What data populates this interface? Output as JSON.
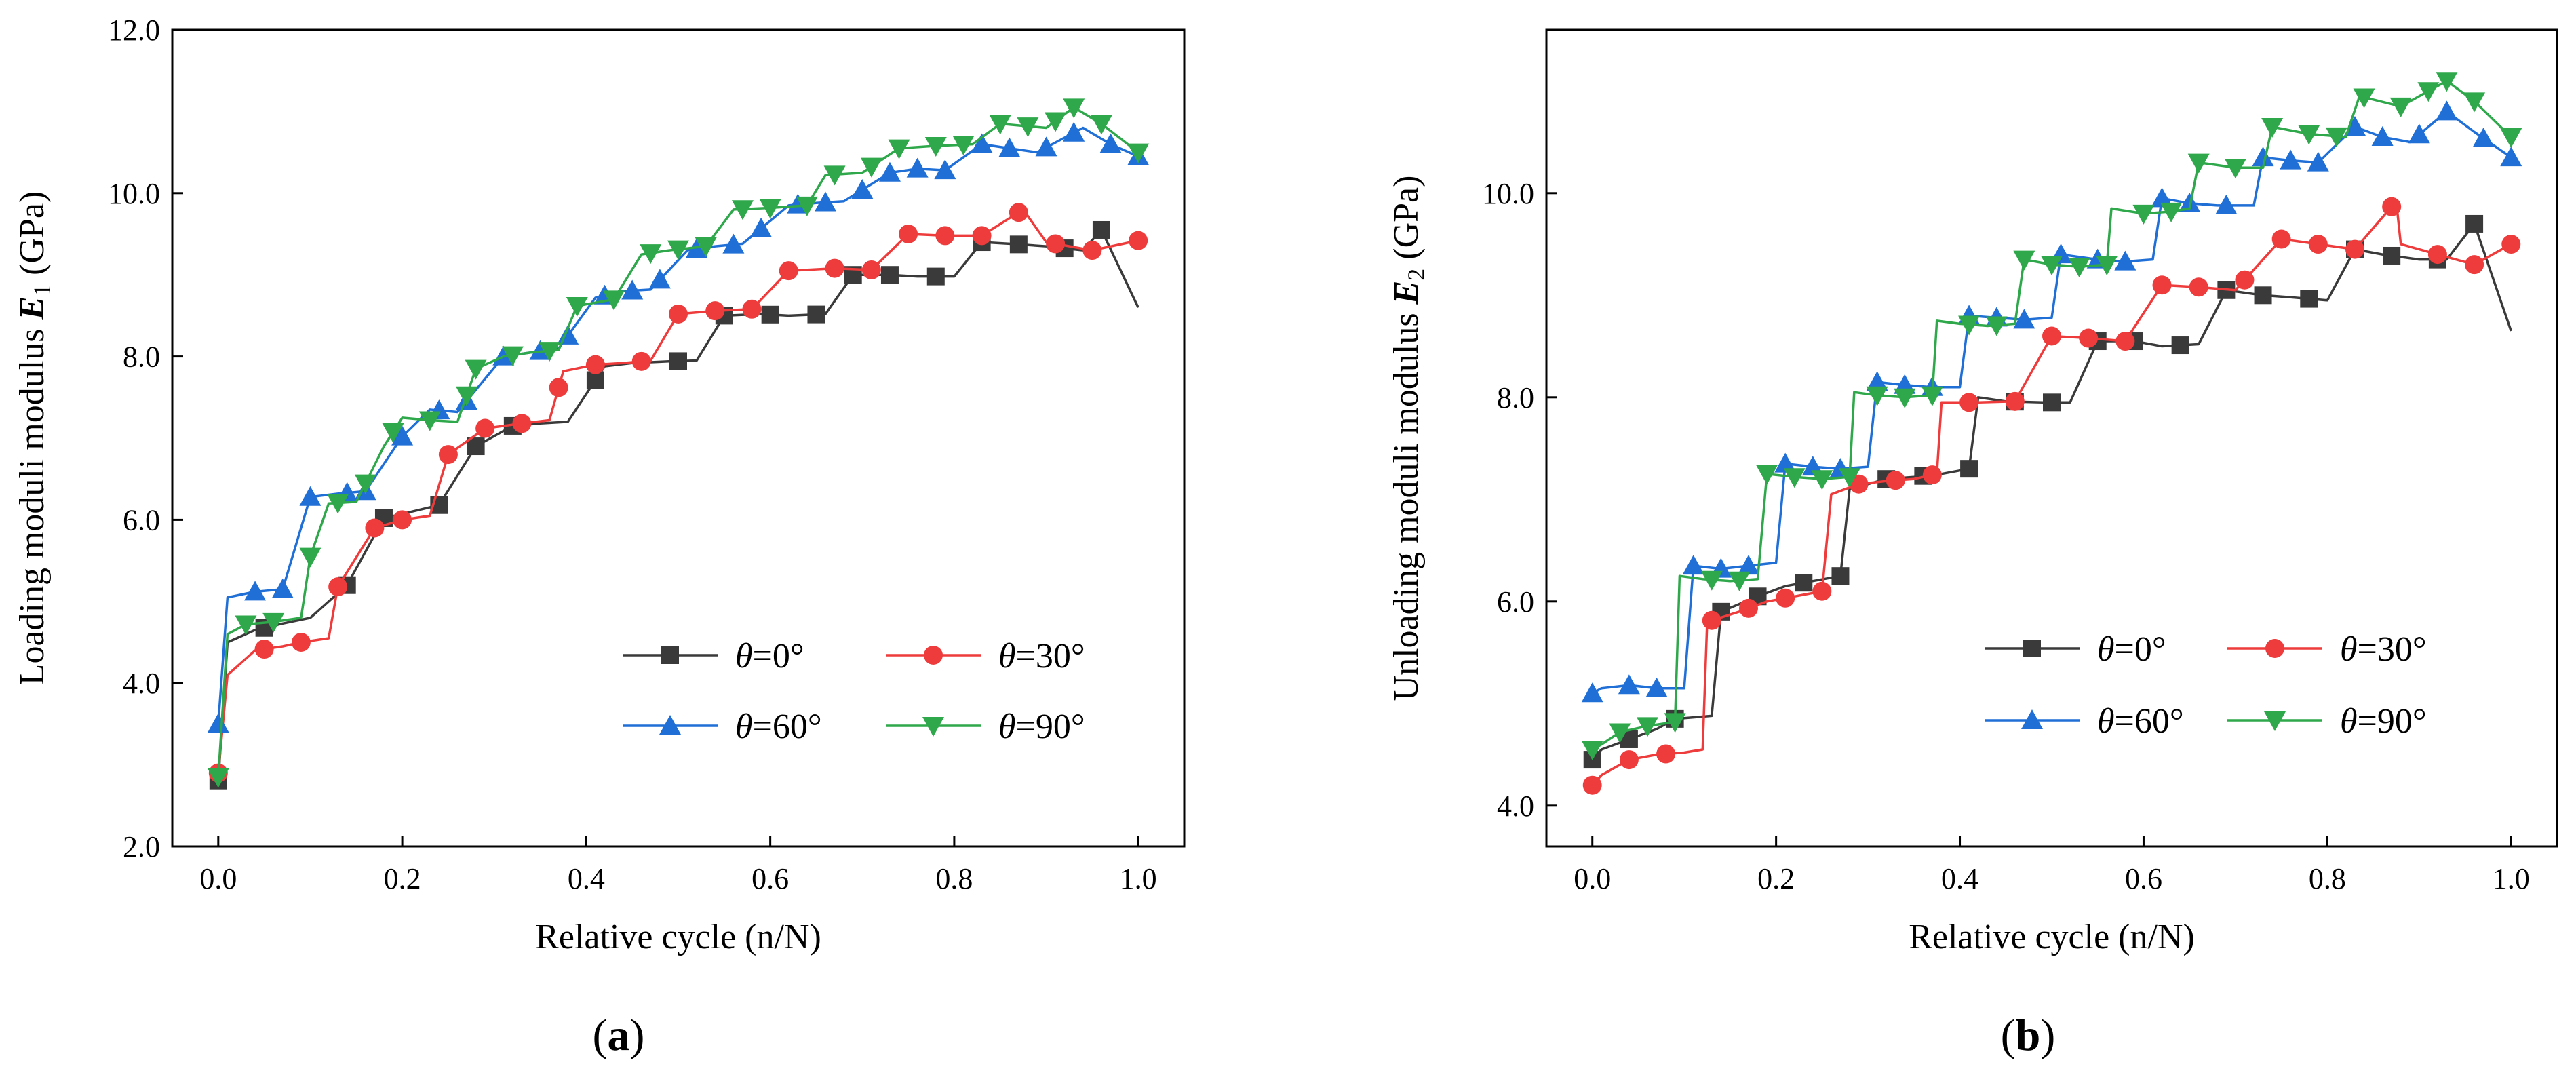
{
  "panel_labels": {
    "a": "a",
    "b": "b"
  },
  "chart_data": [
    {
      "type": "line",
      "panel": "a",
      "title": "",
      "xlabel": "Relative cycle (n/N)",
      "ylabel": {
        "main": "Loading moduli modulus",
        "symbol": "E",
        "subscript": "1",
        "unit": "(GPa)"
      },
      "xlim": [
        -0.05,
        1.05
      ],
      "ylim": [
        2.0,
        12.0
      ],
      "xticks": [
        0.0,
        0.2,
        0.4,
        0.6,
        0.8,
        1.0
      ],
      "xtick_labels": [
        "0.0",
        "0.2",
        "0.4",
        "0.6",
        "0.8",
        "1.0"
      ],
      "yticks": [
        2.0,
        4.0,
        6.0,
        8.0,
        10.0,
        12.0
      ],
      "ytick_labels": [
        "2.0",
        "4.0",
        "6.0",
        "8.0",
        "10.0",
        "12.0"
      ],
      "legend_position": "lower-right",
      "series": [
        {
          "name": "θ=0°",
          "symbol": "θ",
          "suffix": "=0°",
          "color": "#3a3a3a",
          "marker": "square",
          "x": [
            0.0,
            0.01,
            0.04,
            0.07,
            0.1,
            0.14,
            0.18,
            0.21,
            0.24,
            0.28,
            0.32,
            0.35,
            0.38,
            0.42,
            0.45,
            0.49,
            0.52,
            0.55,
            0.59,
            0.62,
            0.66,
            0.69,
            0.73,
            0.76,
            0.8,
            0.83,
            0.86,
            0.9,
            0.94,
            0.96,
            1.0
          ],
          "y": [
            2.8,
            4.5,
            4.65,
            4.73,
            4.8,
            5.2,
            6.02,
            6.1,
            6.18,
            6.9,
            7.15,
            7.18,
            7.2,
            7.88,
            7.92,
            7.94,
            7.95,
            8.5,
            8.52,
            8.5,
            8.52,
            9.0,
            9.0,
            8.98,
            8.98,
            9.4,
            9.38,
            9.35,
            9.3,
            9.55,
            8.6
          ],
          "markers_x": [
            0.0,
            0.05,
            0.14,
            0.18,
            0.24,
            0.28,
            0.32,
            0.41,
            0.5,
            0.55,
            0.6,
            0.65,
            0.69,
            0.73,
            0.78,
            0.83,
            0.87,
            0.92,
            0.96
          ]
        },
        {
          "name": "θ=30°",
          "symbol": "θ",
          "suffix": "=30°",
          "color": "#ee3b3b",
          "marker": "circle",
          "x": [
            0.0,
            0.01,
            0.04,
            0.07,
            0.09,
            0.12,
            0.13,
            0.17,
            0.2,
            0.23,
            0.25,
            0.29,
            0.33,
            0.36,
            0.375,
            0.41,
            0.44,
            0.47,
            0.5,
            0.54,
            0.58,
            0.62,
            0.67,
            0.71,
            0.75,
            0.79,
            0.83,
            0.875,
            0.9,
            0.95,
            1.0
          ],
          "y": [
            2.9,
            4.1,
            4.4,
            4.45,
            4.5,
            4.55,
            5.18,
            5.9,
            6.0,
            6.05,
            6.8,
            7.12,
            7.18,
            7.22,
            7.82,
            7.9,
            7.92,
            7.95,
            8.52,
            8.56,
            8.58,
            9.05,
            9.08,
            9.06,
            9.5,
            9.48,
            9.48,
            9.8,
            9.4,
            9.3,
            9.42
          ],
          "markers_x": [
            0.0,
            0.05,
            0.09,
            0.13,
            0.17,
            0.2,
            0.25,
            0.29,
            0.33,
            0.37,
            0.41,
            0.46,
            0.5,
            0.54,
            0.58,
            0.62,
            0.67,
            0.71,
            0.75,
            0.79,
            0.83,
            0.87,
            0.91,
            0.95,
            1.0
          ]
        },
        {
          "name": "θ=60°",
          "symbol": "θ",
          "suffix": "=60°",
          "color": "#1f6fd6",
          "marker": "triangle-up",
          "x": [
            0.0,
            0.01,
            0.04,
            0.07,
            0.1,
            0.13,
            0.16,
            0.2,
            0.23,
            0.26,
            0.31,
            0.34,
            0.37,
            0.41,
            0.44,
            0.47,
            0.51,
            0.54,
            0.57,
            0.62,
            0.65,
            0.68,
            0.73,
            0.76,
            0.79,
            0.83,
            0.86,
            0.89,
            0.94,
            0.97,
            1.0
          ],
          "y": [
            3.5,
            5.05,
            5.12,
            5.15,
            6.28,
            6.32,
            6.35,
            7.02,
            7.35,
            7.32,
            8.0,
            8.05,
            8.1,
            8.72,
            8.8,
            8.82,
            9.3,
            9.35,
            9.38,
            9.85,
            9.88,
            9.9,
            10.25,
            10.3,
            10.28,
            10.6,
            10.55,
            10.5,
            10.8,
            10.6,
            10.45
          ],
          "markers_x": [
            0.0,
            0.04,
            0.07,
            0.1,
            0.14,
            0.16,
            0.2,
            0.24,
            0.27,
            0.31,
            0.35,
            0.38,
            0.42,
            0.45,
            0.48,
            0.52,
            0.56,
            0.59,
            0.63,
            0.66,
            0.7,
            0.73,
            0.76,
            0.79,
            0.83,
            0.86,
            0.9,
            0.93,
            0.97,
            1.0
          ]
        },
        {
          "name": "θ=90°",
          "symbol": "θ",
          "suffix": "=90°",
          "color": "#2ea84a",
          "marker": "triangle-down",
          "x": [
            0.0,
            0.01,
            0.03,
            0.06,
            0.09,
            0.1,
            0.12,
            0.15,
            0.18,
            0.2,
            0.23,
            0.26,
            0.28,
            0.31,
            0.34,
            0.37,
            0.39,
            0.43,
            0.46,
            0.49,
            0.53,
            0.56,
            0.6,
            0.64,
            0.66,
            0.7,
            0.74,
            0.78,
            0.82,
            0.85,
            0.9,
            0.93,
            0.96,
            1.0
          ],
          "y": [
            2.85,
            4.6,
            4.72,
            4.75,
            4.8,
            5.55,
            6.2,
            6.22,
            6.9,
            7.25,
            7.22,
            7.2,
            7.85,
            8.0,
            8.05,
            8.08,
            8.62,
            8.7,
            9.25,
            9.3,
            9.35,
            9.8,
            9.82,
            9.85,
            10.22,
            10.25,
            10.55,
            10.58,
            10.6,
            10.85,
            10.8,
            11.05,
            10.85,
            10.5
          ],
          "markers_x": [
            0.0,
            0.03,
            0.06,
            0.1,
            0.13,
            0.16,
            0.19,
            0.23,
            0.27,
            0.28,
            0.32,
            0.36,
            0.39,
            0.43,
            0.47,
            0.5,
            0.53,
            0.57,
            0.6,
            0.64,
            0.67,
            0.71,
            0.74,
            0.78,
            0.81,
            0.85,
            0.88,
            0.91,
            0.93,
            0.96,
            1.0
          ]
        }
      ]
    },
    {
      "type": "line",
      "panel": "b",
      "title": "",
      "xlabel": "Relative cycle (n/N)",
      "ylabel": {
        "main": "Unloading moduli modulus",
        "symbol": "E",
        "subscript": "2",
        "unit": "(GPa)"
      },
      "xlim": [
        -0.05,
        1.05
      ],
      "ylim": [
        3.6,
        11.6
      ],
      "xticks": [
        0.0,
        0.2,
        0.4,
        0.6,
        0.8,
        1.0
      ],
      "xtick_labels": [
        "0.0",
        "0.2",
        "0.4",
        "0.6",
        "0.8",
        "1.0"
      ],
      "yticks": [
        4.0,
        6.0,
        8.0,
        10.0
      ],
      "ytick_labels": [
        "4.0",
        "6.0",
        "8.0",
        "10.0"
      ],
      "legend_position": "lower-right",
      "series": [
        {
          "name": "θ=0°",
          "symbol": "θ",
          "suffix": "=0°",
          "color": "#3a3a3a",
          "marker": "square",
          "x": [
            0.0,
            0.01,
            0.04,
            0.07,
            0.09,
            0.13,
            0.14,
            0.18,
            0.21,
            0.24,
            0.27,
            0.28,
            0.32,
            0.35,
            0.38,
            0.41,
            0.42,
            0.45,
            0.49,
            0.52,
            0.55,
            0.59,
            0.62,
            0.66,
            0.69,
            0.73,
            0.76,
            0.8,
            0.83,
            0.86,
            0.9,
            0.93,
            0.96,
            1.0
          ],
          "y": [
            4.45,
            4.55,
            4.65,
            4.75,
            4.85,
            4.88,
            5.9,
            6.05,
            6.15,
            6.2,
            6.25,
            7.1,
            7.2,
            7.22,
            7.25,
            7.3,
            8.0,
            7.96,
            7.95,
            7.95,
            8.55,
            8.55,
            8.5,
            8.52,
            9.05,
            9.0,
            8.98,
            8.95,
            9.45,
            9.4,
            9.35,
            9.35,
            9.7,
            8.65
          ],
          "markers_x": [
            0.0,
            0.04,
            0.09,
            0.14,
            0.18,
            0.23,
            0.27,
            0.32,
            0.36,
            0.41,
            0.46,
            0.5,
            0.55,
            0.59,
            0.64,
            0.69,
            0.73,
            0.78,
            0.83,
            0.87,
            0.92,
            0.96
          ]
        },
        {
          "name": "θ=30°",
          "symbol": "θ",
          "suffix": "=30°",
          "color": "#ee3b3b",
          "marker": "circle",
          "x": [
            0.0,
            0.01,
            0.04,
            0.07,
            0.1,
            0.12,
            0.125,
            0.16,
            0.19,
            0.22,
            0.25,
            0.26,
            0.29,
            0.32,
            0.35,
            0.375,
            0.38,
            0.42,
            0.46,
            0.5,
            0.54,
            0.58,
            0.62,
            0.66,
            0.7,
            0.75,
            0.79,
            0.83,
            0.875,
            0.88,
            0.92,
            0.96,
            1.0
          ],
          "y": [
            4.2,
            4.3,
            4.45,
            4.5,
            4.52,
            4.55,
            5.8,
            5.9,
            6.0,
            6.05,
            6.1,
            7.05,
            7.15,
            7.18,
            7.2,
            7.25,
            7.95,
            7.95,
            7.96,
            8.6,
            8.58,
            8.55,
            9.1,
            9.08,
            9.05,
            9.55,
            9.5,
            9.45,
            9.92,
            9.5,
            9.4,
            9.3,
            9.5
          ],
          "markers_x": [
            0.0,
            0.04,
            0.08,
            0.13,
            0.17,
            0.21,
            0.25,
            0.29,
            0.33,
            0.37,
            0.41,
            0.46,
            0.5,
            0.54,
            0.58,
            0.62,
            0.66,
            0.71,
            0.75,
            0.79,
            0.83,
            0.87,
            0.92,
            0.96,
            1.0
          ]
        },
        {
          "name": "θ=60°",
          "symbol": "θ",
          "suffix": "=60°",
          "color": "#1f6fd6",
          "marker": "triangle-up",
          "x": [
            0.0,
            0.01,
            0.04,
            0.07,
            0.1,
            0.11,
            0.14,
            0.17,
            0.2,
            0.21,
            0.24,
            0.27,
            0.3,
            0.31,
            0.34,
            0.37,
            0.4,
            0.41,
            0.44,
            0.47,
            0.5,
            0.51,
            0.55,
            0.58,
            0.61,
            0.62,
            0.65,
            0.68,
            0.72,
            0.73,
            0.76,
            0.79,
            0.83,
            0.86,
            0.89,
            0.93,
            0.96,
            1.0
          ],
          "y": [
            5.1,
            5.15,
            5.18,
            5.15,
            5.15,
            6.35,
            6.32,
            6.35,
            6.38,
            7.35,
            7.32,
            7.3,
            7.32,
            8.15,
            8.12,
            8.1,
            8.1,
            8.8,
            8.78,
            8.76,
            8.78,
            9.4,
            9.35,
            9.33,
            9.35,
            9.95,
            9.9,
            9.88,
            9.88,
            10.35,
            10.32,
            10.3,
            10.65,
            10.55,
            10.5,
            10.8,
            10.6,
            10.35
          ],
          "markers_x": [
            0.0,
            0.04,
            0.07,
            0.11,
            0.14,
            0.17,
            0.21,
            0.24,
            0.27,
            0.31,
            0.34,
            0.37,
            0.41,
            0.44,
            0.47,
            0.51,
            0.55,
            0.58,
            0.62,
            0.65,
            0.69,
            0.73,
            0.76,
            0.79,
            0.83,
            0.86,
            0.9,
            0.93,
            0.97,
            1.0
          ]
        },
        {
          "name": "θ=90°",
          "symbol": "θ",
          "suffix": "=90°",
          "color": "#2ea84a",
          "marker": "triangle-down",
          "x": [
            0.0,
            0.01,
            0.03,
            0.06,
            0.09,
            0.095,
            0.12,
            0.15,
            0.18,
            0.19,
            0.22,
            0.25,
            0.28,
            0.285,
            0.31,
            0.34,
            0.37,
            0.375,
            0.4,
            0.43,
            0.46,
            0.47,
            0.5,
            0.53,
            0.56,
            0.565,
            0.6,
            0.63,
            0.65,
            0.66,
            0.7,
            0.73,
            0.74,
            0.78,
            0.82,
            0.835,
            0.88,
            0.93,
            0.96,
            1.0
          ],
          "y": [
            4.55,
            4.6,
            4.72,
            4.78,
            4.82,
            6.25,
            6.22,
            6.2,
            6.22,
            7.25,
            7.22,
            7.2,
            7.22,
            8.05,
            8.02,
            8.0,
            8.02,
            8.75,
            8.72,
            8.7,
            8.72,
            9.35,
            9.3,
            9.28,
            9.3,
            9.85,
            9.8,
            9.82,
            9.85,
            10.3,
            10.25,
            10.25,
            10.65,
            10.58,
            10.55,
            10.95,
            10.85,
            11.1,
            10.9,
            10.55
          ],
          "markers_x": [
            0.0,
            0.03,
            0.06,
            0.09,
            0.13,
            0.16,
            0.19,
            0.22,
            0.25,
            0.28,
            0.31,
            0.34,
            0.37,
            0.41,
            0.44,
            0.47,
            0.5,
            0.53,
            0.56,
            0.6,
            0.63,
            0.66,
            0.7,
            0.74,
            0.78,
            0.81,
            0.84,
            0.88,
            0.91,
            0.93,
            0.96,
            1.0
          ]
        }
      ]
    }
  ]
}
